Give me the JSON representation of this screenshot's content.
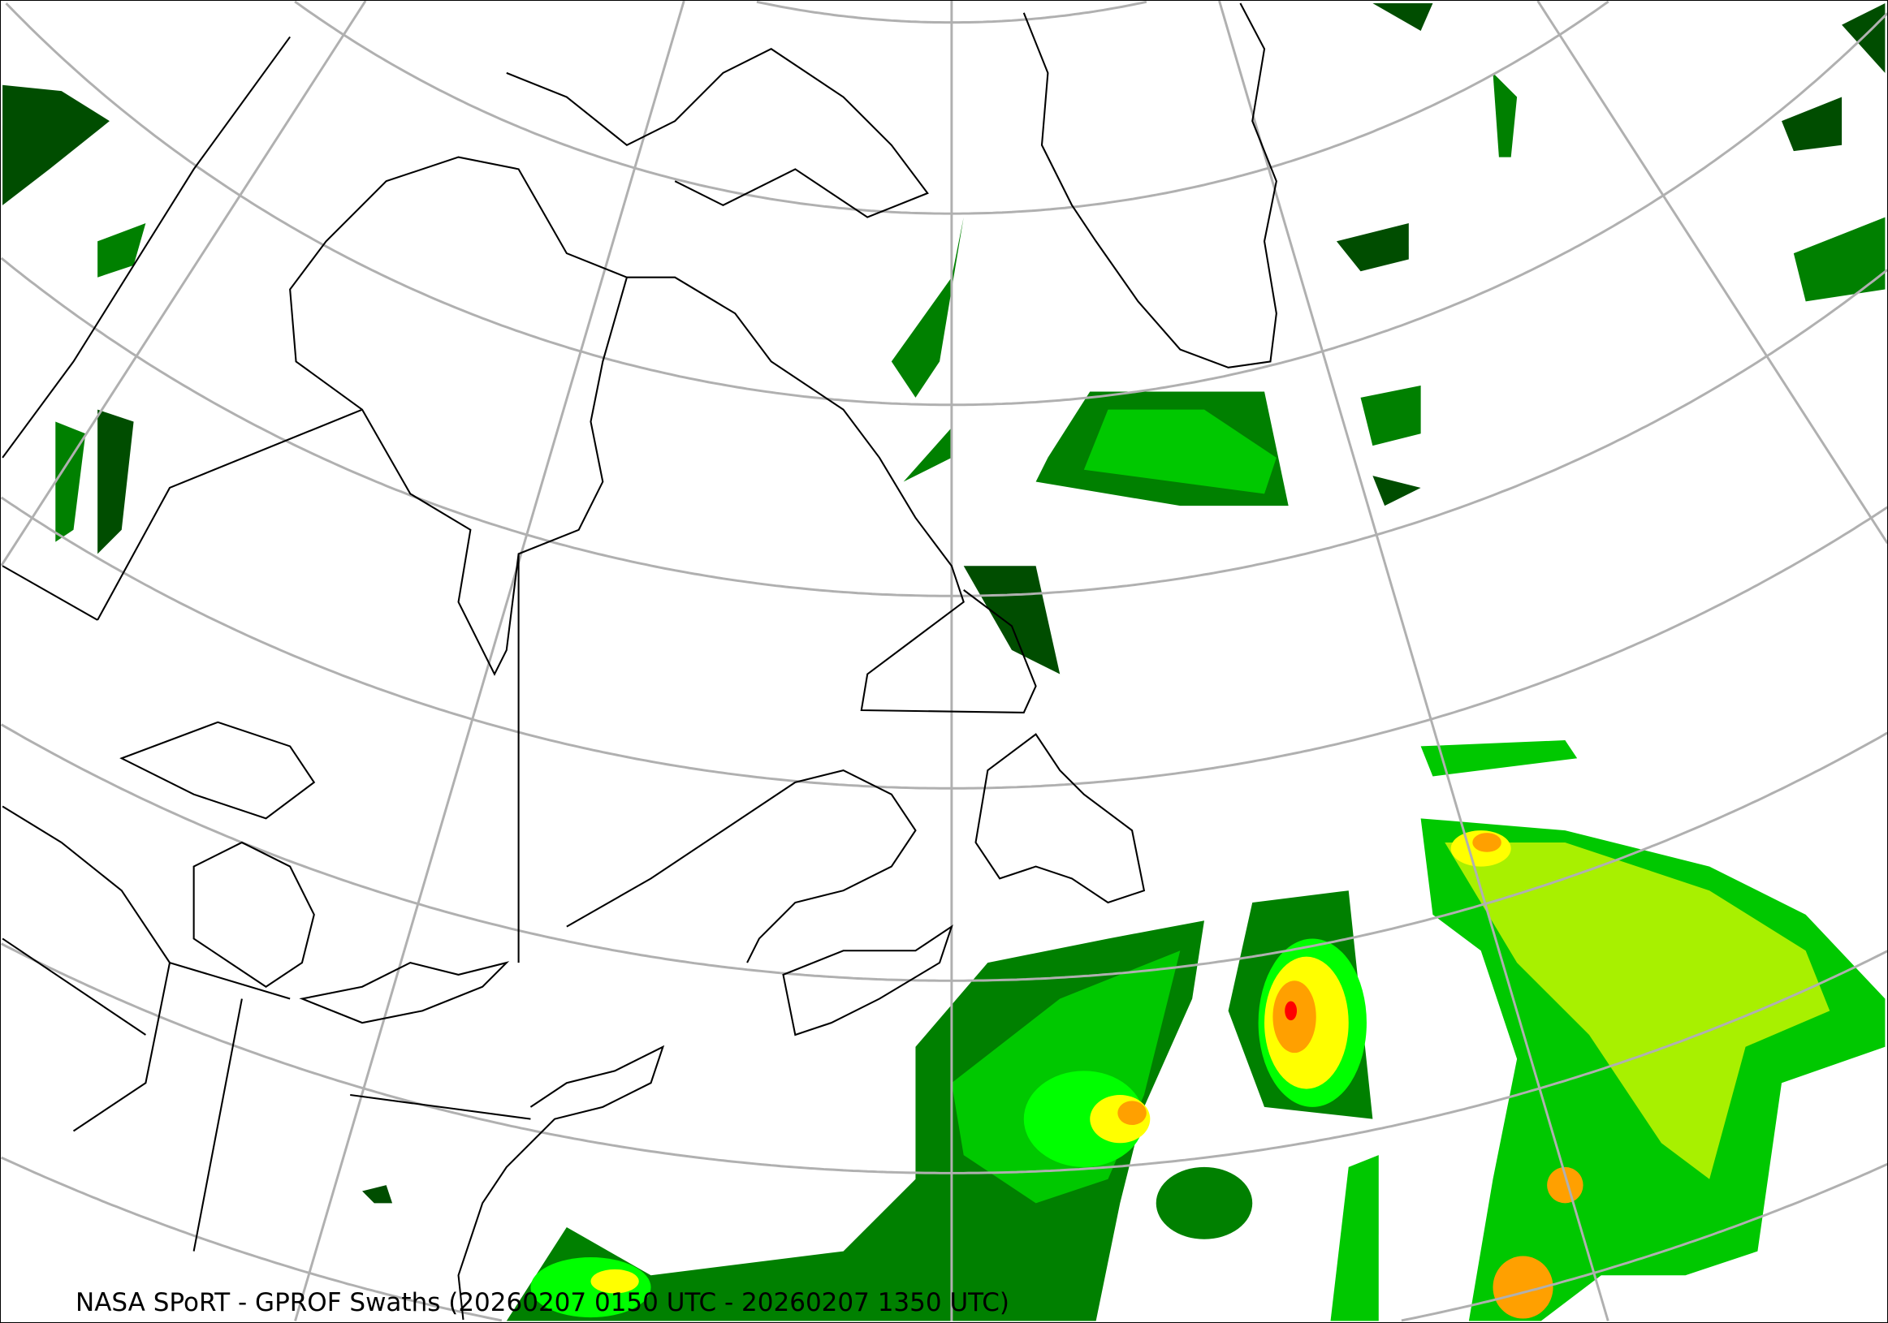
{
  "title": "NASA SPoRT - GPROF Swaths (20260207 0150 UTC - 20260207 1350 UTC)",
  "colors": {
    "graticule": "#b0b0b0",
    "coastline": "#000000",
    "precip_scale": [
      "#004d00",
      "#008000",
      "#00c800",
      "#00ff00",
      "#a8f000",
      "#ffff00",
      "#ffa000",
      "#ff0000"
    ]
  }
}
